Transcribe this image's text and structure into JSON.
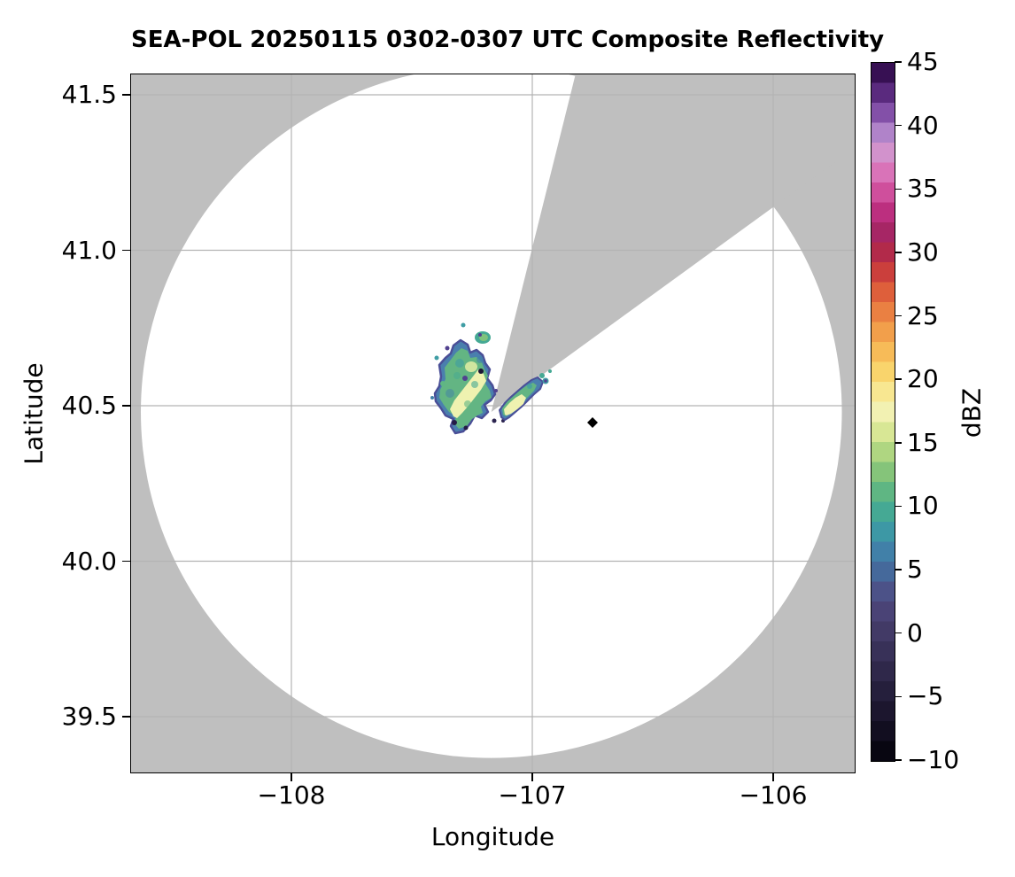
{
  "figure": {
    "title": "SEA-POL 20250115 0302-0307 UTC Composite Reflectivity",
    "background_color": "#ffffff"
  },
  "axes": {
    "xlabel": "Longitude",
    "ylabel": "Latitude",
    "x_tick_labels": [
      "−108",
      "−107",
      "−106"
    ],
    "x_tick_values": [
      -108,
      -107,
      -106
    ],
    "y_tick_labels": [
      "41.5",
      "41.0",
      "40.5",
      "40.0",
      "39.5"
    ],
    "y_tick_values": [
      41.5,
      41.0,
      40.5,
      40.0,
      39.5
    ],
    "xlim": [
      -108.67,
      -105.66
    ],
    "ylim": [
      39.32,
      41.57
    ],
    "panel_color": "#bfbfbf",
    "grid_color": "#b3b3b3",
    "grid_on": true
  },
  "colorbar": {
    "label": "dBZ",
    "vmin": -10,
    "vmax": 45,
    "tick_labels": [
      "45",
      "40",
      "35",
      "30",
      "25",
      "20",
      "15",
      "10",
      "5",
      "0",
      "−5",
      "−10"
    ],
    "tick_values": [
      45,
      40,
      35,
      30,
      25,
      20,
      15,
      10,
      5,
      0,
      -5,
      -10
    ],
    "orientation": "vertical",
    "position": "right",
    "colors_bottom_to_top": [
      "#080611",
      "#120e20",
      "#1c162e",
      "#251f3c",
      "#2f284a",
      "#383158",
      "#423a66",
      "#4a4376",
      "#4c5288",
      "#45699b",
      "#4180a8",
      "#3d98a5",
      "#45a994",
      "#5fb683",
      "#85c47a",
      "#afd681",
      "#d8e795",
      "#f2f1b2",
      "#f8e791",
      "#f9d46c",
      "#f7bb58",
      "#f29f4b",
      "#ea8042",
      "#de5f3b",
      "#cb3f3c",
      "#b22a4a",
      "#a62665",
      "#bc2f7f",
      "#cf4f9c",
      "#d973b8",
      "#d292cc",
      "#b083c9",
      "#8350a8",
      "#5a2a7e",
      "#371053"
    ]
  },
  "chart_data": {
    "type": "heatmap",
    "title": "SEA-POL 20250115 0302-0307 UTC Composite Reflectivity",
    "xlabel": "Longitude",
    "ylabel": "Latitude",
    "value_label": "dBZ",
    "value_range": [
      -10,
      45
    ],
    "xlim": [
      -108.67,
      -105.66
    ],
    "ylim": [
      39.32,
      41.57
    ],
    "radar": {
      "name": "SEA-POL",
      "center_lon": -107.17,
      "center_lat": 40.48,
      "range_deg_lon": 1.455,
      "range_deg_lat": 1.113,
      "range_km": 123,
      "coverage_fill": "#ffffff",
      "blocked_sector_azimuth_deg": [
        14,
        54
      ],
      "blocked_sector_fill": "#bfbfbf"
    },
    "site_marker": {
      "lon": -106.75,
      "lat": 40.446,
      "shape": "diamond",
      "color": "#000000"
    },
    "echo_regions": [
      {
        "name": "main-echo-west-of-radar",
        "lon_range": [
          -107.42,
          -107.15
        ],
        "lat_range": [
          40.38,
          40.72
        ],
        "typical_dbz": [
          3,
          17
        ],
        "max_dbz": 17,
        "description": "speckled light-precip echo with pale-yellow 15-17 dBZ core, green/teal body, blue-purple fringe and scattered below-0 dBZ pixels"
      },
      {
        "name": "secondary-echo-southeast-of-radar",
        "lon_range": [
          -107.13,
          -106.95
        ],
        "lat_range": [
          40.43,
          40.58
        ],
        "typical_dbz": [
          3,
          17
        ],
        "max_dbz": 17,
        "description": "elongated NE-SW echo hugging the blocked-sector edge with pale-yellow core"
      },
      {
        "name": "small-echo-north-of-main-cell",
        "lon_range": [
          -107.28,
          -107.21
        ],
        "lat_range": [
          40.68,
          40.76
        ],
        "typical_dbz": [
          3,
          12
        ],
        "max_dbz": 12,
        "description": "small detached green/teal echo with embedded purple pixel"
      }
    ]
  }
}
